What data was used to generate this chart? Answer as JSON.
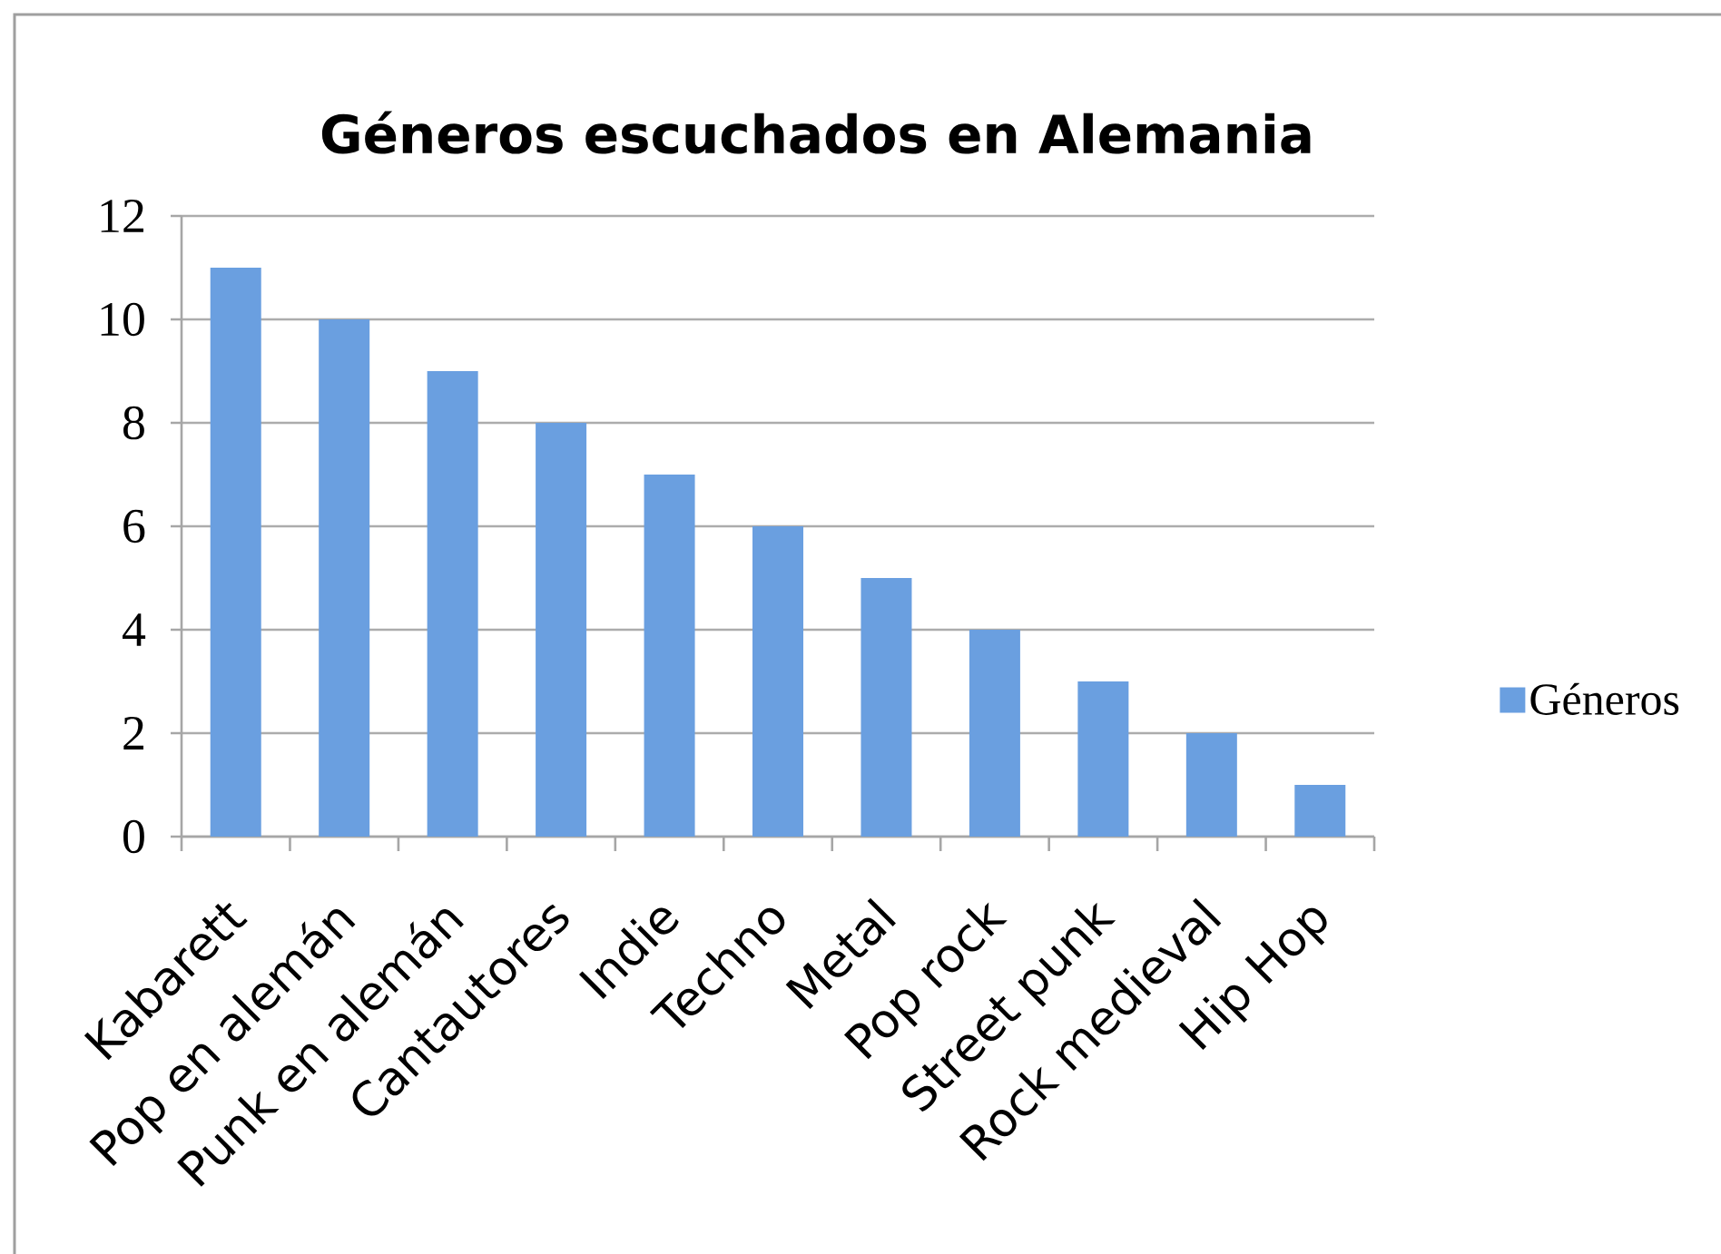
{
  "chart_data": {
    "type": "bar",
    "title": "Géneros escuchados en Alemania",
    "categories": [
      "Kabarett",
      "Pop en alemán",
      "Punk en alemán",
      "Cantautores",
      "Indie",
      "Techno",
      "Metal",
      "Pop rock",
      "Street punk",
      "Rock medieval",
      "Hip Hop"
    ],
    "series": [
      {
        "name": "Géneros",
        "color": "#6a9fe0",
        "values": [
          11,
          10,
          9,
          8,
          7,
          6,
          5,
          4,
          3,
          2,
          1
        ]
      }
    ],
    "ylim": [
      0,
      12
    ],
    "yticks": [
      0,
      2,
      4,
      6,
      8,
      10,
      12
    ],
    "grid": "y",
    "legend": "right"
  }
}
